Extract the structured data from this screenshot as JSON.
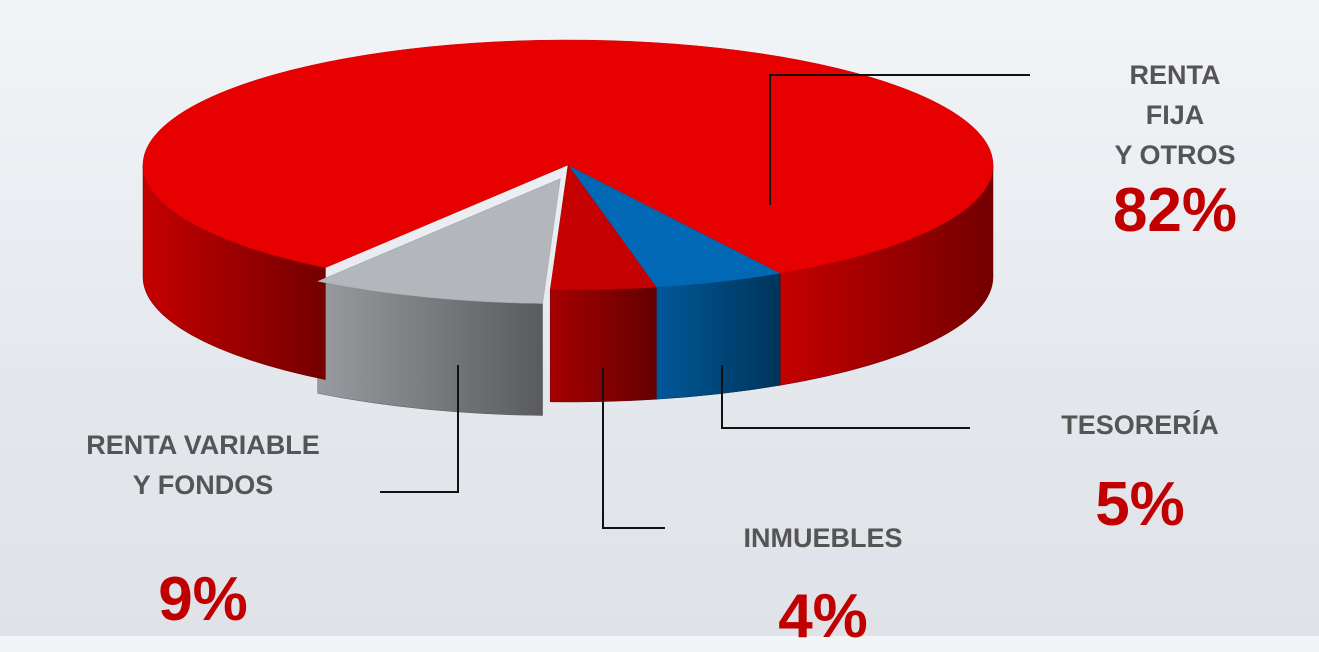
{
  "chart_data": {
    "type": "pie",
    "categories": [
      "RENTA FIJA\nY OTROS",
      "TESORERÍA",
      "INMUEBLES",
      "RENTA VARIABLE\nY FONDOS"
    ],
    "values": [
      82,
      5,
      4,
      9
    ],
    "value_labels": [
      "82%",
      "5%",
      "4%",
      "9%"
    ],
    "colors": [
      "#e60000",
      "#0068b4",
      "#c40000",
      "#b3b6bb"
    ]
  }
}
